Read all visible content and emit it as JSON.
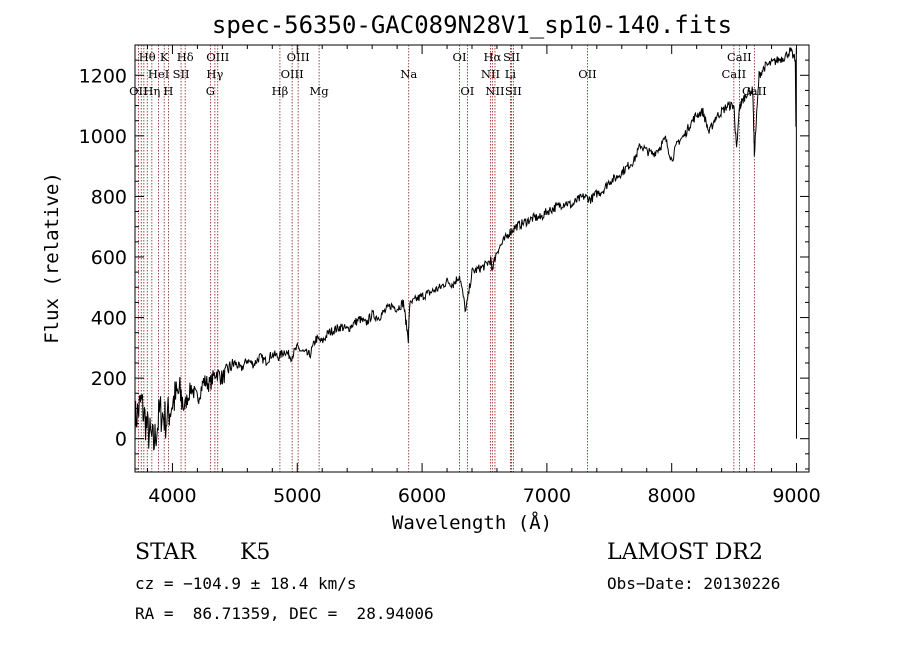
{
  "chart_data": {
    "type": "line",
    "title": "spec-56350-GAC089N28V1_sp10-140.fits",
    "xlabel": "Wavelength (Å)",
    "ylabel": "Flux (relative)",
    "xlim": [
      3700,
      9100
    ],
    "ylim": [
      -110,
      1300
    ],
    "x_ticks": [
      4000,
      5000,
      6000,
      7000,
      8000,
      9000
    ],
    "y_ticks": [
      0,
      200,
      400,
      600,
      800,
      1000,
      1200
    ],
    "grid": false,
    "series": [
      {
        "x": [
          3700,
          3750,
          3800,
          3850,
          3900,
          3950,
          4000,
          4050,
          4100,
          4150,
          4200,
          4250,
          4300,
          4350,
          4400,
          4450,
          4500,
          4550,
          4600,
          4650,
          4700,
          4750,
          4800,
          4850,
          4900,
          4950,
          5000,
          5050,
          5100,
          5150,
          5200,
          5250,
          5300,
          5350,
          5400,
          5450,
          5500,
          5550,
          5600,
          5650,
          5700,
          5750,
          5800,
          5850,
          5890,
          5900,
          5950,
          6000,
          6050,
          6100,
          6150,
          6200,
          6250,
          6300,
          6350,
          6400,
          6450,
          6500,
          6550,
          6560,
          6600,
          6650,
          6700,
          6750,
          6800,
          6850,
          6900,
          6950,
          7000,
          7050,
          7100,
          7150,
          7200,
          7250,
          7300,
          7350,
          7400,
          7450,
          7500,
          7550,
          7600,
          7650,
          7700,
          7750,
          7800,
          7850,
          7900,
          7950,
          8000,
          8050,
          8100,
          8150,
          8200,
          8250,
          8300,
          8350,
          8400,
          8450,
          8498,
          8520,
          8542,
          8560,
          8600,
          8650,
          8662,
          8700,
          8750,
          8800,
          8850,
          8900,
          8950,
          8990
        ],
        "y": [
          60,
          120,
          30,
          -20,
          90,
          60,
          120,
          150,
          110,
          170,
          130,
          190,
          180,
          220,
          200,
          230,
          250,
          230,
          260,
          245,
          270,
          255,
          280,
          270,
          290,
          270,
          300,
          285,
          275,
          330,
          320,
          350,
          360,
          370,
          360,
          380,
          395,
          380,
          410,
          400,
          420,
          440,
          430,
          450,
          330,
          440,
          460,
          470,
          480,
          490,
          500,
          520,
          510,
          540,
          420,
          550,
          560,
          570,
          590,
          560,
          620,
          650,
          680,
          700,
          710,
          720,
          730,
          730,
          750,
          760,
          770,
          780,
          770,
          790,
          800,
          790,
          810,
          820,
          850,
          860,
          880,
          900,
          920,
          970,
          950,
          940,
          960,
          990,
          920,
          980,
          1000,
          1040,
          1070,
          1080,
          1010,
          1060,
          1080,
          1100,
          1100,
          950,
          1090,
          1110,
          1140,
          1150,
          940,
          1200,
          1230,
          1240,
          1250,
          1260,
          1280,
          1250
        ]
      }
    ],
    "lines": [
      {
        "name": "Hθ",
        "x": 3798,
        "row": 1
      },
      {
        "name": "K",
        "x": 3934,
        "row": 1
      },
      {
        "name": "Hδ",
        "x": 4102,
        "row": 1
      },
      {
        "name": "OIII",
        "x": 4363,
        "row": 1
      },
      {
        "name": "OIII",
        "x": 5007,
        "row": 1
      },
      {
        "name": "OI",
        "x": 6300,
        "row": 1
      },
      {
        "name": "Hα",
        "x": 6563,
        "row": 1
      },
      {
        "name": "SII",
        "x": 6717,
        "row": 1
      },
      {
        "name": "CaII",
        "x": 8542,
        "row": 1
      },
      {
        "name": "HeI",
        "x": 3889,
        "row": 2
      },
      {
        "name": "SII",
        "x": 4069,
        "row": 2
      },
      {
        "name": "Hγ",
        "x": 4340,
        "row": 2
      },
      {
        "name": "OIII",
        "x": 4959,
        "row": 2
      },
      {
        "name": "Na",
        "x": 5893,
        "row": 2
      },
      {
        "name": "NII",
        "x": 6548,
        "row": 2
      },
      {
        "name": "Li",
        "x": 6708,
        "row": 2
      },
      {
        "name": "OII",
        "x": 7325,
        "row": 2
      },
      {
        "name": "CaII",
        "x": 8498,
        "row": 2
      },
      {
        "name": "OII",
        "x": 3727,
        "row": 3
      },
      {
        "name": "Hη",
        "x": 3835,
        "row": 3
      },
      {
        "name": "H",
        "x": 3968,
        "row": 3
      },
      {
        "name": "G",
        "x": 4304,
        "row": 3
      },
      {
        "name": "Hβ",
        "x": 4861,
        "row": 3
      },
      {
        "name": "Mg",
        "x": 5175,
        "row": 3
      },
      {
        "name": "OI",
        "x": 6363,
        "row": 3
      },
      {
        "name": "NII",
        "x": 6584,
        "row": 3
      },
      {
        "name": "SII",
        "x": 6731,
        "row": 3
      },
      {
        "name": "CaII",
        "x": 8662,
        "row": 3
      }
    ],
    "extra_line_x": [
      3750,
      3771,
      3889,
      3934,
      3968,
      4102,
      4340,
      4861,
      5007,
      5893,
      6300,
      6548,
      6563,
      6717,
      7325,
      8498,
      8542,
      8662
    ]
  },
  "info": {
    "class": "STAR",
    "subclass": "K5",
    "survey": "LAMOST DR2",
    "cz": "cz = −104.9 ± 18.4 km/s",
    "obs_date": "Obs−Date: 20130226",
    "coords": "RA =  86.71359, DEC =  28.94006"
  }
}
